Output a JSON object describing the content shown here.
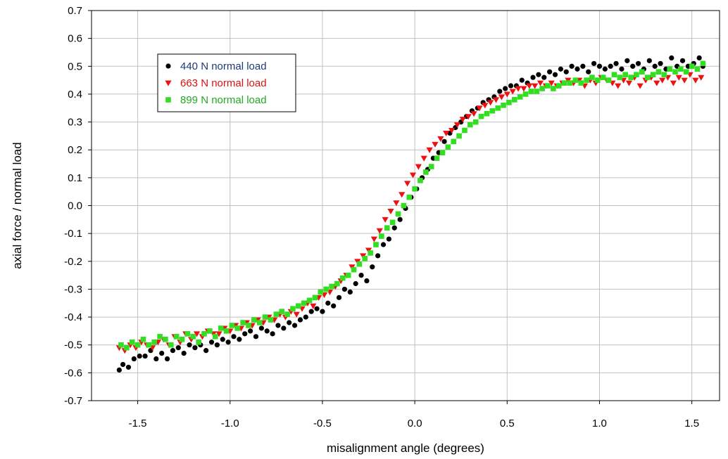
{
  "chart_data": {
    "type": "scatter",
    "title": "",
    "xlabel": "misalignment angle (degrees)",
    "ylabel": "axial force / normal load",
    "xlim": [
      -1.75,
      1.65
    ],
    "ylim": [
      -0.7,
      0.7
    ],
    "xticks": [
      -1.5,
      -1.0,
      -0.5,
      0.0,
      0.5,
      1.0,
      1.5
    ],
    "xtick_labels": [
      "-1.5",
      "-1.0",
      "-0.5",
      "0.0",
      "0.5",
      "1.0",
      "1.5"
    ],
    "yticks": [
      0.7,
      0.6,
      0.5,
      0.4,
      0.3,
      0.2,
      0.1,
      0.0,
      -0.1,
      -0.2,
      -0.3,
      -0.4,
      -0.5,
      -0.6,
      -0.7
    ],
    "ytick_labels": [
      "0.7",
      "0.6",
      "0.5",
      "0.4",
      "0.3",
      "0.2",
      "0.1",
      "0.0",
      "-0.1",
      "-0.2",
      "-0.3",
      "-0.4",
      "-0.5",
      "-0.6",
      "-0.7"
    ],
    "grid": true,
    "legend_position": "top-left",
    "series": [
      {
        "name": "440 N normal load",
        "marker": "circle",
        "color": "#000000",
        "label_color": "#1f3a7a",
        "x": [
          -1.6,
          -1.58,
          -1.55,
          -1.52,
          -1.49,
          -1.46,
          -1.43,
          -1.4,
          -1.37,
          -1.34,
          -1.31,
          -1.28,
          -1.25,
          -1.22,
          -1.19,
          -1.16,
          -1.13,
          -1.1,
          -1.07,
          -1.04,
          -1.01,
          -0.98,
          -0.95,
          -0.92,
          -0.89,
          -0.86,
          -0.83,
          -0.8,
          -0.77,
          -0.74,
          -0.71,
          -0.68,
          -0.65,
          -0.62,
          -0.59,
          -0.56,
          -0.53,
          -0.5,
          -0.47,
          -0.44,
          -0.41,
          -0.38,
          -0.35,
          -0.32,
          -0.29,
          -0.26,
          -0.23,
          -0.2,
          -0.17,
          -0.14,
          -0.11,
          -0.08,
          -0.05,
          -0.02,
          0.01,
          0.04,
          0.07,
          0.1,
          0.13,
          0.16,
          0.19,
          0.22,
          0.25,
          0.28,
          0.31,
          0.34,
          0.37,
          0.4,
          0.43,
          0.46,
          0.49,
          0.52,
          0.55,
          0.58,
          0.61,
          0.64,
          0.67,
          0.7,
          0.73,
          0.76,
          0.79,
          0.82,
          0.85,
          0.88,
          0.91,
          0.94,
          0.97,
          1.0,
          1.03,
          1.06,
          1.09,
          1.12,
          1.15,
          1.18,
          1.21,
          1.24,
          1.27,
          1.3,
          1.33,
          1.36,
          1.39,
          1.42,
          1.45,
          1.48,
          1.51,
          1.54,
          1.56
        ],
        "y": [
          -0.59,
          -0.57,
          -0.58,
          -0.55,
          -0.54,
          -0.54,
          -0.52,
          -0.55,
          -0.53,
          -0.55,
          -0.52,
          -0.51,
          -0.53,
          -0.5,
          -0.51,
          -0.5,
          -0.52,
          -0.49,
          -0.5,
          -0.48,
          -0.49,
          -0.47,
          -0.48,
          -0.46,
          -0.45,
          -0.47,
          -0.44,
          -0.45,
          -0.46,
          -0.43,
          -0.44,
          -0.42,
          -0.43,
          -0.41,
          -0.4,
          -0.38,
          -0.37,
          -0.38,
          -0.35,
          -0.36,
          -0.33,
          -0.3,
          -0.31,
          -0.28,
          -0.25,
          -0.27,
          -0.22,
          -0.18,
          -0.14,
          -0.12,
          -0.08,
          -0.05,
          -0.01,
          0.03,
          0.06,
          0.1,
          0.13,
          0.17,
          0.19,
          0.23,
          0.26,
          0.28,
          0.3,
          0.32,
          0.34,
          0.35,
          0.37,
          0.38,
          0.39,
          0.41,
          0.42,
          0.43,
          0.43,
          0.45,
          0.44,
          0.46,
          0.47,
          0.46,
          0.48,
          0.47,
          0.49,
          0.48,
          0.5,
          0.49,
          0.5,
          0.48,
          0.51,
          0.5,
          0.49,
          0.5,
          0.51,
          0.49,
          0.52,
          0.5,
          0.51,
          0.49,
          0.52,
          0.5,
          0.51,
          0.49,
          0.53,
          0.5,
          0.52,
          0.5,
          0.51,
          0.53,
          0.5
        ]
      },
      {
        "name": "663 N normal load",
        "marker": "triangle-down",
        "color": "#ee1111",
        "label_color": "#dd1111",
        "x": [
          -1.6,
          -1.57,
          -1.54,
          -1.51,
          -1.48,
          -1.45,
          -1.42,
          -1.39,
          -1.36,
          -1.33,
          -1.3,
          -1.27,
          -1.24,
          -1.21,
          -1.18,
          -1.15,
          -1.12,
          -1.09,
          -1.06,
          -1.03,
          -1.0,
          -0.97,
          -0.94,
          -0.91,
          -0.88,
          -0.85,
          -0.82,
          -0.79,
          -0.76,
          -0.73,
          -0.7,
          -0.67,
          -0.64,
          -0.61,
          -0.58,
          -0.55,
          -0.52,
          -0.49,
          -0.46,
          -0.43,
          -0.4,
          -0.37,
          -0.34,
          -0.31,
          -0.28,
          -0.25,
          -0.22,
          -0.19,
          -0.16,
          -0.13,
          -0.1,
          -0.07,
          -0.04,
          -0.01,
          0.02,
          0.05,
          0.08,
          0.11,
          0.14,
          0.17,
          0.2,
          0.23,
          0.26,
          0.29,
          0.32,
          0.35,
          0.38,
          0.41,
          0.44,
          0.47,
          0.5,
          0.53,
          0.56,
          0.59,
          0.62,
          0.65,
          0.68,
          0.71,
          0.74,
          0.77,
          0.8,
          0.83,
          0.86,
          0.89,
          0.92,
          0.95,
          0.98,
          1.01,
          1.04,
          1.07,
          1.1,
          1.13,
          1.16,
          1.19,
          1.22,
          1.25,
          1.28,
          1.31,
          1.34,
          1.37,
          1.4,
          1.43,
          1.46,
          1.49,
          1.52,
          1.55
        ],
        "y": [
          -0.51,
          -0.52,
          -0.5,
          -0.51,
          -0.49,
          -0.5,
          -0.51,
          -0.49,
          -0.48,
          -0.5,
          -0.47,
          -0.49,
          -0.46,
          -0.48,
          -0.46,
          -0.47,
          -0.45,
          -0.46,
          -0.46,
          -0.44,
          -0.45,
          -0.43,
          -0.44,
          -0.42,
          -0.43,
          -0.41,
          -0.42,
          -0.4,
          -0.41,
          -0.39,
          -0.4,
          -0.38,
          -0.39,
          -0.37,
          -0.35,
          -0.36,
          -0.33,
          -0.32,
          -0.31,
          -0.29,
          -0.27,
          -0.25,
          -0.22,
          -0.2,
          -0.18,
          -0.16,
          -0.12,
          -0.09,
          -0.05,
          -0.02,
          0.01,
          0.04,
          0.08,
          0.11,
          0.14,
          0.17,
          0.2,
          0.22,
          0.24,
          0.26,
          0.27,
          0.29,
          0.31,
          0.32,
          0.33,
          0.35,
          0.36,
          0.37,
          0.38,
          0.39,
          0.4,
          0.41,
          0.42,
          0.42,
          0.43,
          0.43,
          0.44,
          0.43,
          0.44,
          0.43,
          0.44,
          0.45,
          0.44,
          0.45,
          0.43,
          0.45,
          0.44,
          0.46,
          0.45,
          0.44,
          0.43,
          0.45,
          0.44,
          0.46,
          0.43,
          0.45,
          0.46,
          0.44,
          0.45,
          0.46,
          0.44,
          0.46,
          0.45,
          0.47,
          0.45,
          0.46
        ]
      },
      {
        "name": "899 N normal load",
        "marker": "square",
        "color": "#33dd22",
        "label_color": "#22aa22",
        "x": [
          -1.59,
          -1.56,
          -1.53,
          -1.5,
          -1.47,
          -1.44,
          -1.41,
          -1.38,
          -1.35,
          -1.32,
          -1.29,
          -1.26,
          -1.23,
          -1.2,
          -1.17,
          -1.14,
          -1.11,
          -1.08,
          -1.05,
          -1.02,
          -0.99,
          -0.96,
          -0.93,
          -0.9,
          -0.87,
          -0.84,
          -0.81,
          -0.78,
          -0.75,
          -0.72,
          -0.69,
          -0.66,
          -0.63,
          -0.6,
          -0.57,
          -0.54,
          -0.51,
          -0.48,
          -0.45,
          -0.42,
          -0.39,
          -0.36,
          -0.33,
          -0.3,
          -0.27,
          -0.24,
          -0.21,
          -0.18,
          -0.15,
          -0.12,
          -0.09,
          -0.06,
          -0.03,
          0.0,
          0.03,
          0.06,
          0.09,
          0.12,
          0.15,
          0.18,
          0.21,
          0.24,
          0.27,
          0.3,
          0.33,
          0.36,
          0.39,
          0.42,
          0.45,
          0.48,
          0.51,
          0.54,
          0.57,
          0.6,
          0.63,
          0.66,
          0.69,
          0.72,
          0.75,
          0.78,
          0.81,
          0.84,
          0.87,
          0.9,
          0.93,
          0.96,
          0.99,
          1.02,
          1.05,
          1.08,
          1.11,
          1.14,
          1.17,
          1.2,
          1.23,
          1.26,
          1.29,
          1.32,
          1.35,
          1.38,
          1.41,
          1.44,
          1.47,
          1.5,
          1.53,
          1.56
        ],
        "y": [
          -0.5,
          -0.51,
          -0.49,
          -0.5,
          -0.48,
          -0.5,
          -0.49,
          -0.47,
          -0.48,
          -0.5,
          -0.47,
          -0.48,
          -0.46,
          -0.47,
          -0.49,
          -0.46,
          -0.45,
          -0.47,
          -0.44,
          -0.45,
          -0.43,
          -0.44,
          -0.42,
          -0.43,
          -0.41,
          -0.42,
          -0.4,
          -0.41,
          -0.39,
          -0.38,
          -0.39,
          -0.37,
          -0.36,
          -0.35,
          -0.34,
          -0.33,
          -0.31,
          -0.3,
          -0.29,
          -0.28,
          -0.26,
          -0.25,
          -0.23,
          -0.21,
          -0.19,
          -0.17,
          -0.14,
          -0.11,
          -0.08,
          -0.06,
          -0.03,
          0.0,
          0.03,
          0.06,
          0.09,
          0.12,
          0.14,
          0.17,
          0.19,
          0.21,
          0.23,
          0.25,
          0.27,
          0.29,
          0.3,
          0.32,
          0.33,
          0.34,
          0.35,
          0.36,
          0.37,
          0.38,
          0.39,
          0.4,
          0.41,
          0.41,
          0.42,
          0.43,
          0.42,
          0.43,
          0.44,
          0.44,
          0.45,
          0.44,
          0.45,
          0.46,
          0.45,
          0.46,
          0.45,
          0.47,
          0.46,
          0.47,
          0.46,
          0.47,
          0.48,
          0.46,
          0.47,
          0.48,
          0.47,
          0.49,
          0.48,
          0.49,
          0.48,
          0.5,
          0.49,
          0.51
        ]
      }
    ]
  }
}
